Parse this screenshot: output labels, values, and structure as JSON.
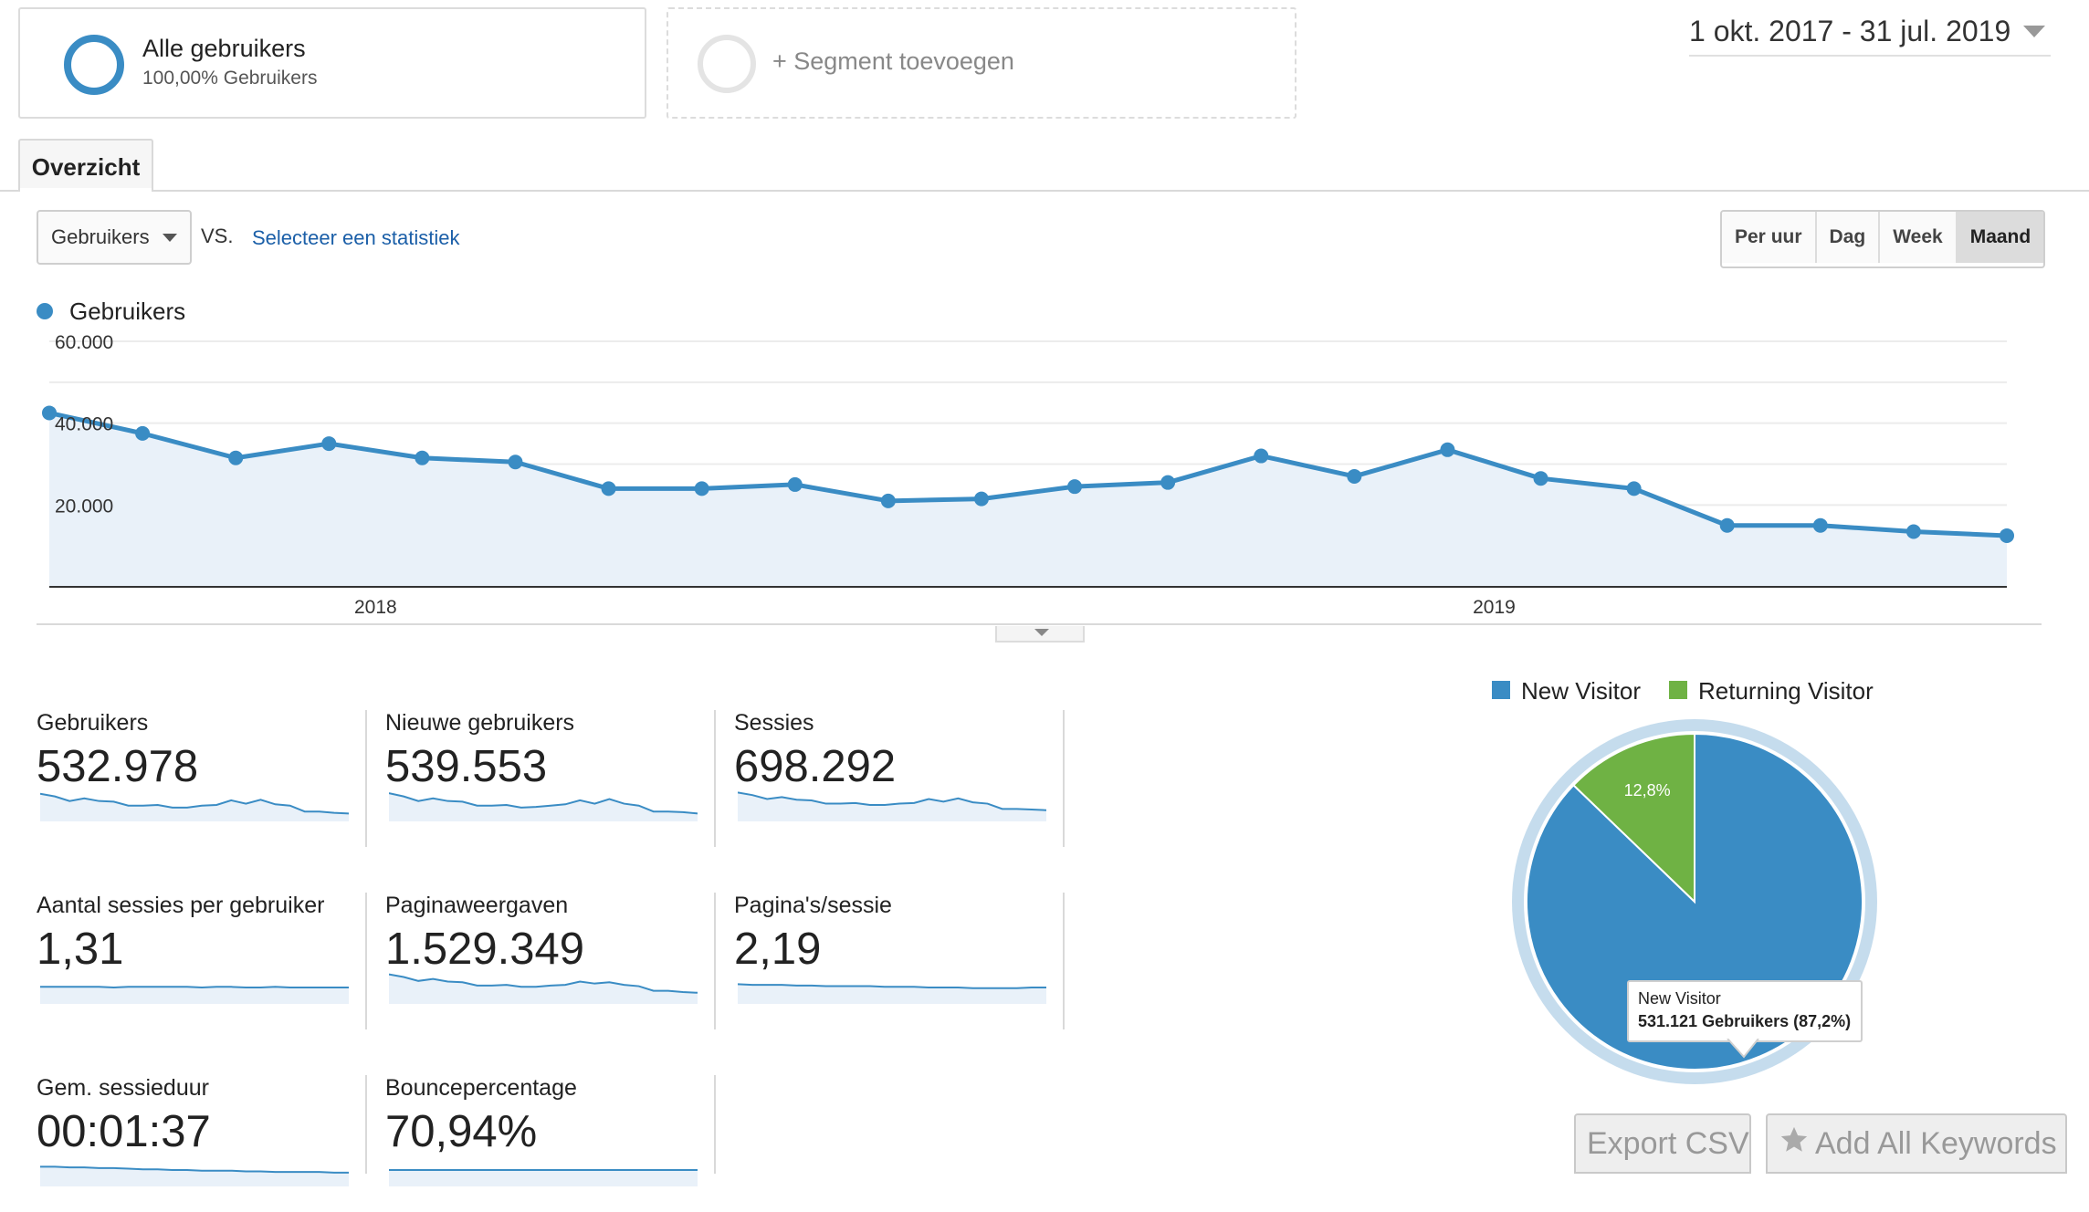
{
  "segments": {
    "active": {
      "title": "Alle gebruikers",
      "subtitle": "100,00% Gebruikers"
    },
    "add_label": "+ Segment toevoegen"
  },
  "date_range": "1 okt. 2017 - 31 jul. 2019",
  "tabs": [
    {
      "label": "Overzicht"
    }
  ],
  "controls": {
    "metric_select": "Gebruikers",
    "vs_label": "VS.",
    "select_stat_link": "Selecteer een statistiek",
    "interval_buttons": [
      {
        "label": "Per uur",
        "active": false
      },
      {
        "label": "Dag",
        "active": false
      },
      {
        "label": "Week",
        "active": false
      },
      {
        "label": "Maand",
        "active": true
      }
    ]
  },
  "chart_legend": "Gebruikers",
  "chart_data": [
    {
      "type": "area",
      "series": [
        {
          "name": "Gebruikers",
          "values": [
            42500,
            37500,
            31500,
            35000,
            31500,
            30500,
            24000,
            24000,
            25000,
            21000,
            21500,
            24500,
            25500,
            32000,
            27000,
            33500,
            26500,
            24000,
            15000,
            15000,
            13500,
            12500
          ]
        }
      ],
      "x_tick_labels": [
        "2018",
        "2019"
      ],
      "y_tick_labels": [
        "20.000",
        "40.000",
        "60.000"
      ],
      "ylim": [
        0,
        60000
      ],
      "grid": true,
      "color": "#3a8cc4",
      "fill": "#e9f1f9"
    },
    {
      "type": "pie",
      "categories": [
        "New Visitor",
        "Returning Visitor"
      ],
      "values": [
        87.2,
        12.8
      ],
      "slice_labels": [
        "",
        "12,8%"
      ],
      "colors": [
        "#3a8cc4",
        "#6fb244"
      ],
      "legend_position": "top"
    }
  ],
  "stats": [
    {
      "label": "Gebruikers",
      "value": "532.978",
      "spark": [
        42,
        38,
        31,
        35,
        31,
        30,
        24,
        24,
        25,
        21,
        21,
        24,
        25,
        32,
        27,
        33,
        26,
        24,
        15,
        15,
        13,
        12
      ]
    },
    {
      "label": "Nieuwe gebruikers",
      "value": "539.553",
      "spark": [
        43,
        38,
        31,
        35,
        31,
        30,
        24,
        24,
        25,
        21,
        22,
        24,
        26,
        32,
        27,
        34,
        27,
        24,
        15,
        15,
        14,
        12
      ]
    },
    {
      "label": "Sessies",
      "value": "698.292",
      "spark": [
        44,
        40,
        34,
        37,
        33,
        32,
        27,
        27,
        28,
        25,
        25,
        27,
        28,
        34,
        30,
        35,
        29,
        27,
        19,
        19,
        18,
        17
      ]
    },
    {
      "label": "Aantal sessies per gebruiker",
      "value": "1,31",
      "spark": [
        26,
        26,
        26,
        26,
        26,
        25,
        26,
        26,
        26,
        26,
        26,
        25,
        26,
        26,
        25,
        25,
        26,
        25,
        25,
        25,
        25,
        25
      ]
    },
    {
      "label": "Paginaweergaven",
      "value": "1.529.349",
      "spark": [
        45,
        41,
        35,
        38,
        34,
        33,
        28,
        28,
        29,
        26,
        26,
        28,
        29,
        34,
        31,
        33,
        29,
        27,
        20,
        20,
        18,
        17
      ]
    },
    {
      "label": "Pagina's/sessie",
      "value": "2,19",
      "spark": [
        30,
        29,
        29,
        29,
        28,
        28,
        27,
        27,
        27,
        27,
        26,
        26,
        26,
        25,
        25,
        25,
        24,
        24,
        24,
        24,
        25,
        25
      ]
    },
    {
      "label": "Gem. sessieduur",
      "value": "00:01:37",
      "spark": [
        30,
        30,
        29,
        29,
        28,
        28,
        27,
        26,
        26,
        25,
        25,
        24,
        24,
        24,
        23,
        23,
        22,
        22,
        22,
        22,
        21,
        21
      ]
    },
    {
      "label": "Bouncepercentage",
      "value": "70,94%",
      "spark": [
        25,
        25,
        25,
        25,
        25,
        25,
        25,
        25,
        25,
        25,
        25,
        25,
        25,
        25,
        25,
        25,
        25,
        25,
        25,
        25,
        25,
        25
      ]
    }
  ],
  "pie_legend": [
    {
      "label": "New Visitor",
      "color": "#3a8cc4"
    },
    {
      "label": "Returning Visitor",
      "color": "#6fb244"
    }
  ],
  "tooltip": {
    "title": "New Visitor",
    "detail": "531.121 Gebruikers (87,2%)"
  },
  "buttons": {
    "export_csv": "Export CSV",
    "add_keywords": "Add All Keywords"
  },
  "icons": {
    "add_keywords": "star-icon"
  }
}
